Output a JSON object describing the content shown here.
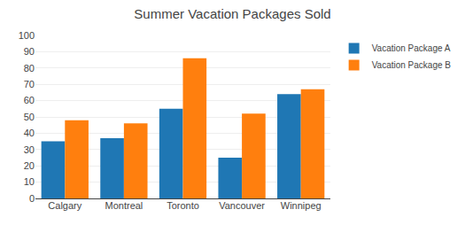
{
  "chart_data": {
    "type": "bar",
    "title": "Summer Vacation Packages Sold",
    "categories": [
      "Calgary",
      "Montreal",
      "Toronto",
      "Vancouver",
      "Winnipeg"
    ],
    "series": [
      {
        "name": "Vacation Package A",
        "values": [
          35,
          37,
          55,
          25,
          64
        ]
      },
      {
        "name": "Vacation Package B",
        "values": [
          48,
          46,
          86,
          52,
          67
        ]
      }
    ],
    "ylim": [
      0,
      100
    ],
    "yticks": [
      0,
      10,
      20,
      30,
      40,
      50,
      60,
      70,
      80,
      90,
      100
    ],
    "grid": true,
    "legend": "upper right"
  }
}
